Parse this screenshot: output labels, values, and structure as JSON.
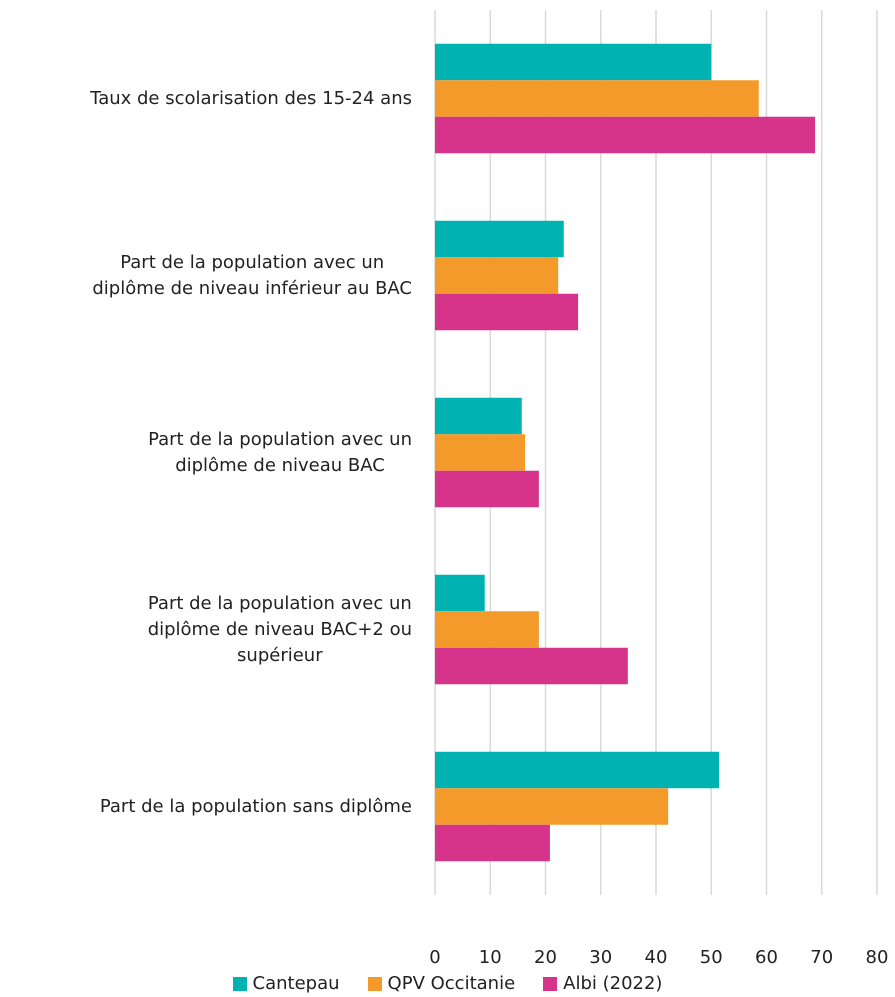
{
  "chart_data": {
    "type": "hbar",
    "categories": [
      "Taux de scolarisation des 15-24 ans",
      "Part de la population avec un\ndiplôme de niveau inférieur au BAC",
      "Part de la population avec un\ndiplôme de niveau BAC",
      "Part de la population avec un\ndiplôme de niveau BAC+2 ou\nsupérieur",
      "Part de la population sans diplôme"
    ],
    "series": [
      {
        "name": "Cantepau",
        "color": "#00b2b2",
        "values": [
          50,
          23.3,
          15.7,
          9,
          51.4
        ]
      },
      {
        "name": "QPV Occitanie",
        "color": "#f39a2b",
        "values": [
          58.6,
          22.3,
          16.3,
          18.8,
          42.2
        ]
      },
      {
        "name": "Albi (2022)",
        "color": "#d6338a",
        "values": [
          68.8,
          25.9,
          18.8,
          34.9,
          20.8
        ]
      }
    ],
    "xlim": [
      0,
      80
    ],
    "xticks": [
      0,
      10,
      20,
      30,
      40,
      50,
      60,
      70,
      80
    ],
    "grid": true,
    "legend": "bottom"
  }
}
